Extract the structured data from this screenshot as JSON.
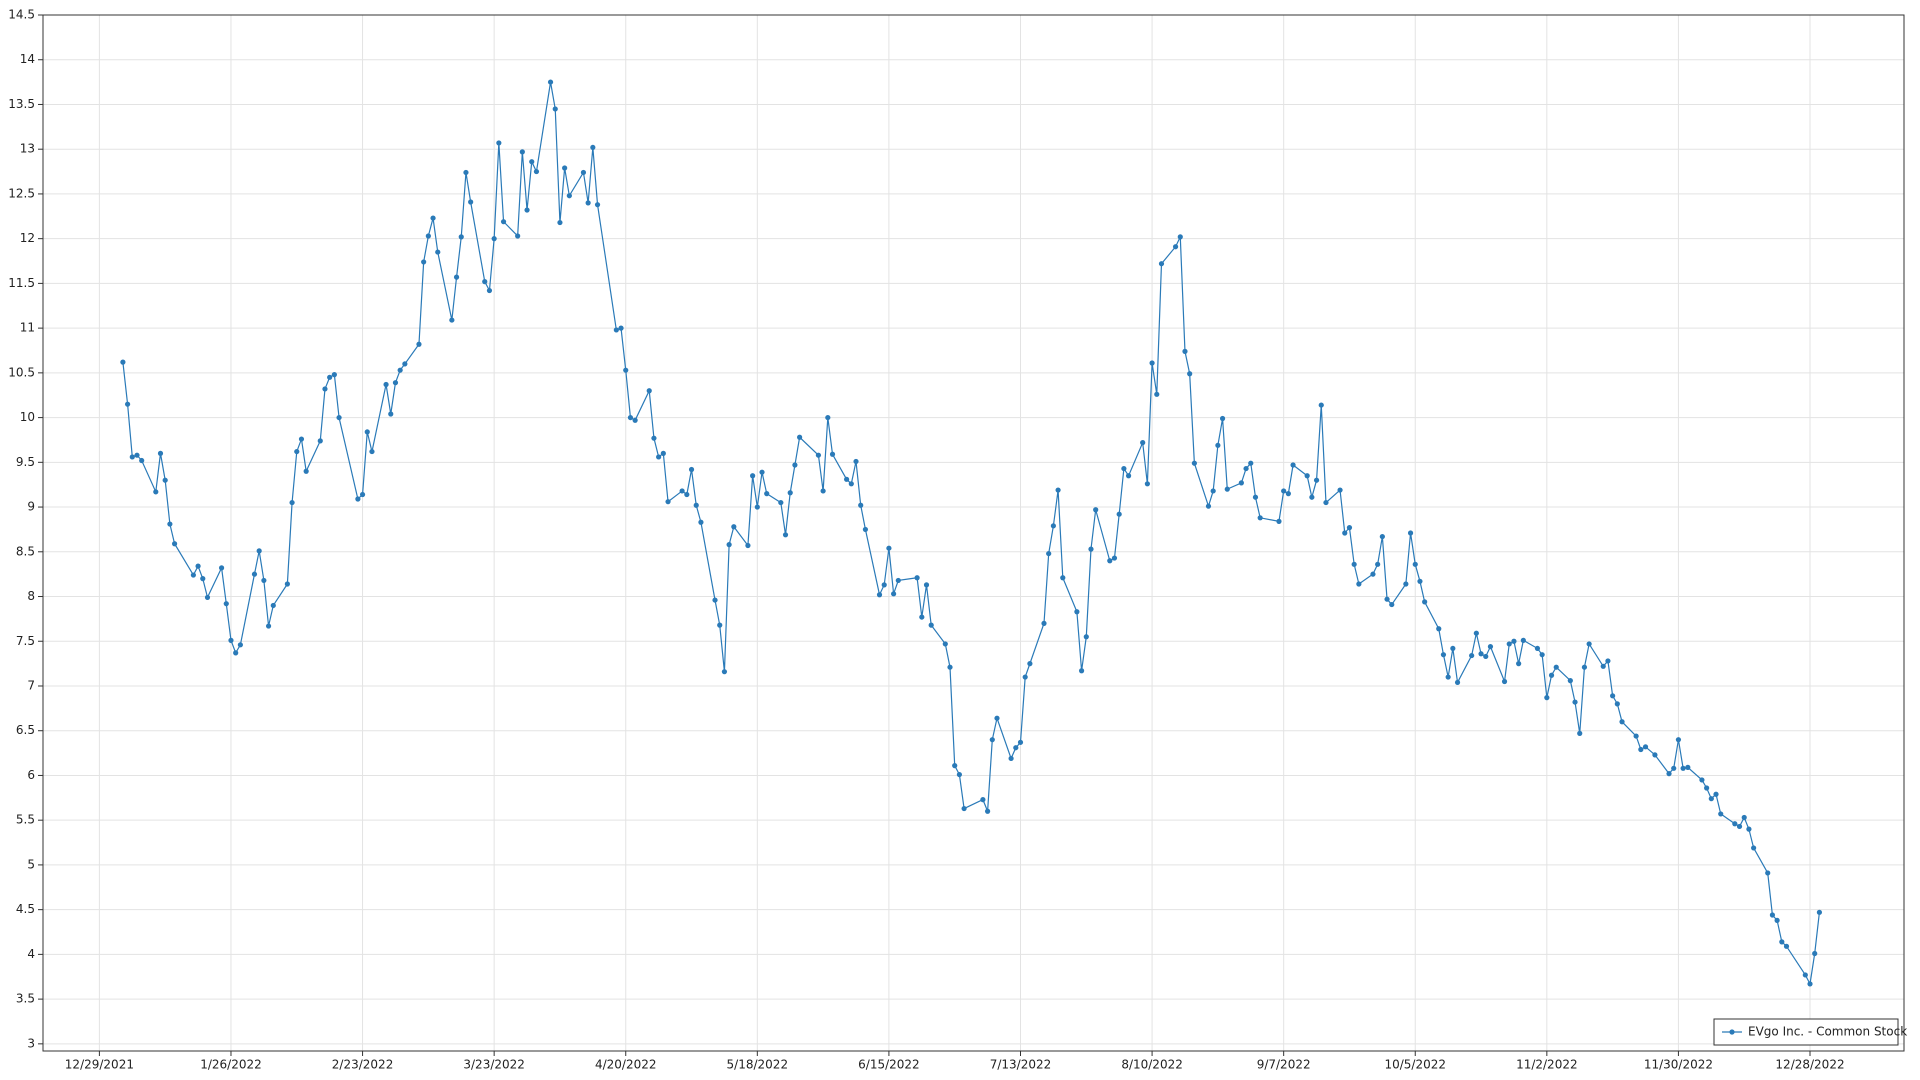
{
  "chart_data": {
    "type": "line",
    "x": [
      "1/3/2022",
      "1/4/2022",
      "1/5/2022",
      "1/6/2022",
      "1/7/2022",
      "1/10/2022",
      "1/11/2022",
      "1/12/2022",
      "1/13/2022",
      "1/14/2022",
      "1/18/2022",
      "1/19/2022",
      "1/20/2022",
      "1/21/2022",
      "1/24/2022",
      "1/25/2022",
      "1/26/2022",
      "1/27/2022",
      "1/28/2022",
      "1/31/2022",
      "2/1/2022",
      "2/2/2022",
      "2/3/2022",
      "2/4/2022",
      "2/7/2022",
      "2/8/2022",
      "2/9/2022",
      "2/10/2022",
      "2/11/2022",
      "2/14/2022",
      "2/15/2022",
      "2/16/2022",
      "2/17/2022",
      "2/18/2022",
      "2/22/2022",
      "2/23/2022",
      "2/24/2022",
      "2/25/2022",
      "2/28/2022",
      "3/1/2022",
      "3/2/2022",
      "3/3/2022",
      "3/4/2022",
      "3/7/2022",
      "3/8/2022",
      "3/9/2022",
      "3/10/2022",
      "3/11/2022",
      "3/14/2022",
      "3/15/2022",
      "3/16/2022",
      "3/17/2022",
      "3/18/2022",
      "3/21/2022",
      "3/22/2022",
      "3/23/2022",
      "3/24/2022",
      "3/25/2022",
      "3/28/2022",
      "3/29/2022",
      "3/30/2022",
      "3/31/2022",
      "4/1/2022",
      "4/4/2022",
      "4/5/2022",
      "4/6/2022",
      "4/7/2022",
      "4/8/2022",
      "4/11/2022",
      "4/12/2022",
      "4/13/2022",
      "4/14/2022",
      "4/18/2022",
      "4/19/2022",
      "4/20/2022",
      "4/21/2022",
      "4/22/2022",
      "4/25/2022",
      "4/26/2022",
      "4/27/2022",
      "4/28/2022",
      "4/29/2022",
      "5/2/2022",
      "5/3/2022",
      "5/4/2022",
      "5/5/2022",
      "5/6/2022",
      "5/9/2022",
      "5/10/2022",
      "5/11/2022",
      "5/12/2022",
      "5/13/2022",
      "5/16/2022",
      "5/17/2022",
      "5/18/2022",
      "5/19/2022",
      "5/20/2022",
      "5/23/2022",
      "5/24/2022",
      "5/25/2022",
      "5/26/2022",
      "5/27/2022",
      "5/31/2022",
      "6/1/2022",
      "6/2/2022",
      "6/3/2022",
      "6/6/2022",
      "6/7/2022",
      "6/8/2022",
      "6/9/2022",
      "6/10/2022",
      "6/13/2022",
      "6/14/2022",
      "6/15/2022",
      "6/16/2022",
      "6/17/2022",
      "6/21/2022",
      "6/22/2022",
      "6/23/2022",
      "6/24/2022",
      "6/27/2022",
      "6/28/2022",
      "6/29/2022",
      "6/30/2022",
      "7/1/2022",
      "7/5/2022",
      "7/6/2022",
      "7/7/2022",
      "7/8/2022",
      "7/11/2022",
      "7/12/2022",
      "7/13/2022",
      "7/14/2022",
      "7/15/2022",
      "7/18/2022",
      "7/19/2022",
      "7/20/2022",
      "7/21/2022",
      "7/22/2022",
      "7/25/2022",
      "7/26/2022",
      "7/27/2022",
      "7/28/2022",
      "7/29/2022",
      "8/1/2022",
      "8/2/2022",
      "8/3/2022",
      "8/4/2022",
      "8/5/2022",
      "8/8/2022",
      "8/9/2022",
      "8/10/2022",
      "8/11/2022",
      "8/12/2022",
      "8/15/2022",
      "8/16/2022",
      "8/17/2022",
      "8/18/2022",
      "8/19/2022",
      "8/22/2022",
      "8/23/2022",
      "8/24/2022",
      "8/25/2022",
      "8/26/2022",
      "8/29/2022",
      "8/30/2022",
      "8/31/2022",
      "9/1/2022",
      "9/2/2022",
      "9/6/2022",
      "9/7/2022",
      "9/8/2022",
      "9/9/2022",
      "9/12/2022",
      "9/13/2022",
      "9/14/2022",
      "9/15/2022",
      "9/16/2022",
      "9/19/2022",
      "9/20/2022",
      "9/21/2022",
      "9/22/2022",
      "9/23/2022",
      "9/26/2022",
      "9/27/2022",
      "9/28/2022",
      "9/29/2022",
      "9/30/2022",
      "10/3/2022",
      "10/4/2022",
      "10/5/2022",
      "10/6/2022",
      "10/7/2022",
      "10/10/2022",
      "10/11/2022",
      "10/12/2022",
      "10/13/2022",
      "10/14/2022",
      "10/17/2022",
      "10/18/2022",
      "10/19/2022",
      "10/20/2022",
      "10/21/2022",
      "10/24/2022",
      "10/25/2022",
      "10/26/2022",
      "10/27/2022",
      "10/28/2022",
      "10/31/2022",
      "11/1/2022",
      "11/2/2022",
      "11/3/2022",
      "11/4/2022",
      "11/7/2022",
      "11/8/2022",
      "11/9/2022",
      "11/10/2022",
      "11/11/2022",
      "11/14/2022",
      "11/15/2022",
      "11/16/2022",
      "11/17/2022",
      "11/18/2022",
      "11/21/2022",
      "11/22/2022",
      "11/23/2022",
      "11/25/2022",
      "11/28/2022",
      "11/29/2022",
      "11/30/2022",
      "12/1/2022",
      "12/2/2022",
      "12/5/2022",
      "12/6/2022",
      "12/7/2022",
      "12/8/2022",
      "12/9/2022",
      "12/12/2022",
      "12/13/2022",
      "12/14/2022",
      "12/15/2022",
      "12/16/2022",
      "12/19/2022",
      "12/20/2022",
      "12/21/2022",
      "12/22/2022",
      "12/23/2022",
      "12/27/2022",
      "12/28/2022",
      "12/29/2022",
      "12/30/2022"
    ],
    "series": [
      {
        "name": "EVgo Inc. - Common Stock",
        "color": "#2a7ab8",
        "values": [
          10.62,
          10.15,
          9.56,
          9.58,
          9.52,
          9.17,
          9.6,
          9.3,
          8.81,
          8.59,
          8.24,
          8.34,
          8.2,
          7.99,
          8.32,
          7.92,
          7.51,
          7.37,
          7.46,
          8.25,
          8.51,
          8.18,
          7.67,
          7.9,
          8.14,
          9.05,
          9.62,
          9.76,
          9.4,
          9.74,
          10.32,
          10.45,
          10.48,
          10.0,
          9.09,
          9.14,
          9.84,
          9.62,
          10.37,
          10.04,
          10.39,
          10.53,
          10.6,
          10.82,
          11.74,
          12.03,
          12.23,
          11.85,
          11.09,
          11.57,
          12.02,
          12.74,
          12.41,
          11.52,
          11.42,
          12.0,
          13.07,
          12.19,
          12.03,
          12.97,
          12.32,
          12.86,
          12.75,
          13.75,
          13.45,
          12.18,
          12.79,
          12.48,
          12.74,
          12.4,
          13.02,
          12.38,
          10.98,
          11.0,
          10.53,
          10.0,
          9.97,
          10.3,
          9.77,
          9.56,
          9.6,
          9.06,
          9.18,
          9.14,
          9.42,
          9.02,
          8.83,
          7.96,
          7.68,
          7.16,
          8.58,
          8.78,
          8.57,
          9.35,
          9.0,
          9.39,
          9.15,
          9.05,
          8.69,
          9.16,
          9.47,
          9.78,
          9.58,
          9.18,
          10.0,
          9.59,
          9.31,
          9.26,
          9.51,
          9.02,
          8.75,
          8.02,
          8.13,
          8.54,
          8.03,
          8.18,
          8.21,
          7.77,
          8.13,
          7.68,
          7.47,
          7.21,
          6.11,
          6.01,
          5.63,
          5.73,
          5.6,
          6.4,
          6.64,
          6.19,
          6.31,
          6.37,
          7.1,
          7.25,
          7.7,
          8.48,
          8.79,
          9.19,
          8.21,
          7.83,
          7.17,
          7.55,
          8.53,
          8.97,
          8.4,
          8.43,
          8.92,
          9.43,
          9.35,
          9.72,
          9.26,
          10.61,
          10.26,
          11.72,
          11.91,
          12.02,
          10.74,
          10.49,
          9.49,
          9.01,
          9.18,
          9.69,
          9.99,
          9.2,
          9.27,
          9.43,
          9.49,
          9.11,
          8.88,
          8.84,
          9.18,
          9.15,
          9.47,
          9.35,
          9.11,
          9.3,
          10.14,
          9.05,
          9.19,
          8.71,
          8.77,
          8.36,
          8.14,
          8.25,
          8.36,
          8.67,
          7.97,
          7.91,
          8.14,
          8.71,
          8.36,
          8.17,
          7.94,
          7.64,
          7.35,
          7.1,
          7.42,
          7.04,
          7.34,
          7.59,
          7.36,
          7.33,
          7.44,
          7.05,
          7.47,
          7.5,
          7.25,
          7.51,
          7.42,
          7.35,
          6.87,
          7.12,
          7.21,
          7.06,
          6.82,
          6.47,
          7.21,
          7.47,
          7.22,
          7.28,
          6.89,
          6.8,
          6.6,
          6.44,
          6.29,
          6.32,
          6.23,
          6.02,
          6.08,
          6.4,
          6.08,
          6.09,
          5.95,
          5.86,
          5.74,
          5.79,
          5.57,
          5.46,
          5.43,
          5.53,
          5.4,
          5.19,
          4.91,
          4.44,
          4.38,
          4.14,
          4.09,
          3.77,
          3.67,
          4.01,
          4.47
        ]
      }
    ],
    "xlim": [
      "12/17/2021",
      "1/17/2023"
    ],
    "xticks": [
      "12/29/2021",
      "1/26/2022",
      "2/23/2022",
      "3/23/2022",
      "4/20/2022",
      "5/18/2022",
      "6/15/2022",
      "7/13/2022",
      "8/10/2022",
      "9/7/2022",
      "10/5/2022",
      "11/2/2022",
      "11/30/2022",
      "12/28/2022"
    ],
    "ylim": [
      2.92,
      14.5
    ],
    "yticks": [
      3,
      3.5,
      4,
      4.5,
      5,
      5.5,
      6,
      6.5,
      7,
      7.5,
      8,
      8.5,
      9,
      9.5,
      10,
      10.5,
      11,
      11.5,
      12,
      12.5,
      13,
      13.5,
      14,
      14.5
    ],
    "grid": true,
    "legend": "bottom-right"
  }
}
